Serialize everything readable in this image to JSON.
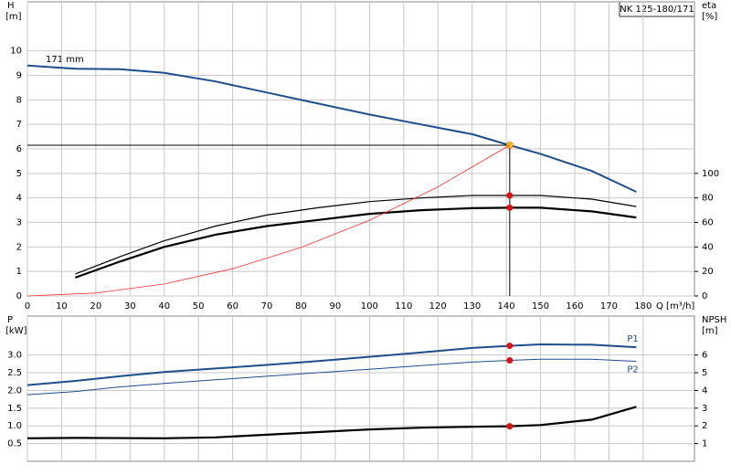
{
  "chart_data": [
    {
      "type": "line",
      "title": "NK 125-180/171",
      "annotation": "171 mm",
      "ylabel": "H",
      "yunit": "[m]",
      "y2label": "eta",
      "y2unit": "[%]",
      "xlabel": "Q [m³/h]",
      "xlim": [
        0,
        195
      ],
      "xticks": [
        0,
        10,
        20,
        30,
        40,
        50,
        60,
        70,
        80,
        90,
        100,
        110,
        120,
        130,
        140,
        150,
        160,
        170,
        180
      ],
      "ylim": [
        0,
        12
      ],
      "yticks": [
        0,
        1,
        2,
        3,
        4,
        5,
        6,
        7,
        8,
        9,
        10
      ],
      "y2lim": [
        0,
        240
      ],
      "y2ticks": [
        0,
        20,
        40,
        60,
        80,
        100
      ],
      "grid": true,
      "duty_x": 141,
      "series": [
        {
          "color": "#1f4e8c",
          "width": 2,
          "marker": "#f5c518",
          "duty_lines": true,
          "x": [
            0,
            14,
            27,
            40,
            55,
            70,
            85,
            100,
            115,
            130,
            141,
            150,
            165,
            178
          ],
          "values": [
            9.4,
            9.27,
            9.25,
            9.1,
            8.75,
            8.3,
            7.85,
            7.4,
            7.0,
            6.6,
            6.15,
            5.8,
            5.1,
            4.25
          ]
        },
        {
          "color": "#000000",
          "width": 1.2,
          "marker": "#e01010",
          "axis": "y2",
          "x": [
            14,
            27,
            40,
            55,
            70,
            85,
            100,
            115,
            130,
            141,
            150,
            165,
            178
          ],
          "values": [
            18,
            32,
            45,
            57,
            66,
            72,
            77,
            80,
            82,
            82,
            82,
            79,
            73
          ]
        },
        {
          "color": "#000000",
          "width": 2.2,
          "marker": "#e01010",
          "axis": "y2",
          "x": [
            14,
            27,
            40,
            55,
            70,
            85,
            100,
            115,
            130,
            141,
            150,
            165,
            178
          ],
          "values": [
            15,
            28,
            40,
            50,
            57,
            62,
            67,
            70,
            71.6,
            72,
            72,
            69,
            64
          ]
        },
        {
          "color": "#ff3030",
          "width": 0.8,
          "x": [
            0,
            20,
            40,
            60,
            80,
            100,
            120,
            141
          ],
          "values": [
            0,
            0.12,
            0.49,
            1.11,
            1.98,
            3.09,
            4.45,
            6.15
          ]
        }
      ]
    },
    {
      "type": "line",
      "ylabel": "P",
      "yunit": "[kW]",
      "y2label": "NPSH",
      "y2unit": "[m]",
      "ylim": [
        0,
        4.1
      ],
      "yticks": [
        {
          "value": 0.5,
          "label": "0.5"
        },
        {
          "value": 1,
          "label": "1.0"
        },
        {
          "value": 1.5,
          "label": "1.5"
        },
        {
          "value": 2,
          "label": "2.0"
        },
        {
          "value": 2.5,
          "label": "2.5"
        },
        {
          "value": 3,
          "label": "3.0"
        }
      ],
      "y2lim": [
        0,
        8.2
      ],
      "y2ticks": [
        1,
        2,
        3,
        4,
        5,
        6
      ],
      "grid": true,
      "duty_x": 141,
      "series": [
        {
          "name": "P1",
          "color": "#1f4e8c",
          "width": 2,
          "marker": "#e01010",
          "x": [
            0,
            14,
            27,
            40,
            55,
            70,
            85,
            100,
            115,
            130,
            141,
            150,
            165,
            178
          ],
          "values": [
            2.15,
            2.27,
            2.4,
            2.52,
            2.62,
            2.72,
            2.83,
            2.95,
            3.07,
            3.2,
            3.26,
            3.3,
            3.29,
            3.22
          ]
        },
        {
          "name": "P2",
          "color": "#1f4e8c",
          "width": 1,
          "marker": "#e01010",
          "x": [
            0,
            14,
            27,
            40,
            55,
            70,
            85,
            100,
            115,
            130,
            141,
            150,
            165,
            178
          ],
          "values": [
            1.88,
            1.97,
            2.1,
            2.2,
            2.3,
            2.4,
            2.5,
            2.6,
            2.7,
            2.8,
            2.85,
            2.88,
            2.88,
            2.82
          ]
        },
        {
          "color": "#000000",
          "width": 2.2,
          "marker": "#e01010",
          "axis": "y2",
          "x": [
            0,
            14,
            40,
            55,
            70,
            85,
            100,
            115,
            130,
            141,
            150,
            165,
            178
          ],
          "values": [
            1.3,
            1.32,
            1.3,
            1.35,
            1.5,
            1.65,
            1.8,
            1.9,
            1.95,
            1.98,
            2.05,
            2.35,
            3.08
          ]
        }
      ]
    }
  ]
}
